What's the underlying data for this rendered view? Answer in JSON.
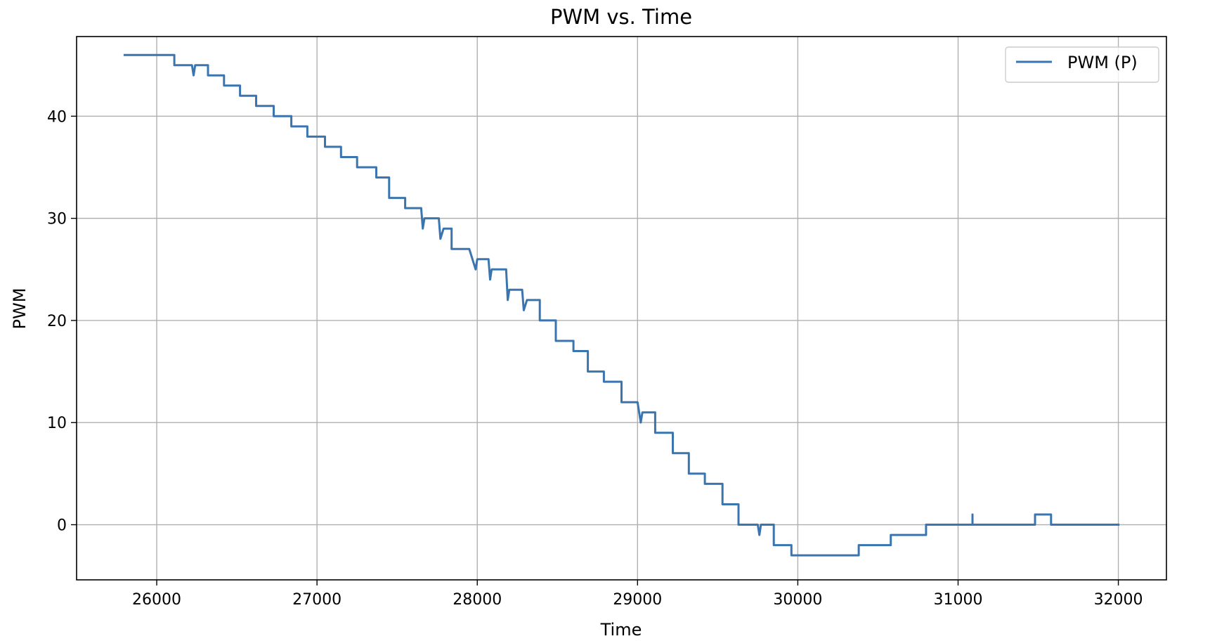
{
  "chart_data": {
    "type": "line",
    "title": "PWM vs. Time",
    "xlabel": "Time",
    "ylabel": "PWM",
    "xlim": [
      25500,
      32300
    ],
    "ylim": [
      -5.4,
      47.8
    ],
    "xticks": [
      26000,
      27000,
      28000,
      29000,
      30000,
      31000,
      32000
    ],
    "yticks": [
      0,
      10,
      20,
      30,
      40
    ],
    "grid": true,
    "legend_position": "top-right",
    "series": [
      {
        "name": "PWM (P)",
        "color": "#3b75af",
        "points": [
          [
            25800,
            46
          ],
          [
            26110,
            46
          ],
          [
            26110,
            45
          ],
          [
            26220,
            45
          ],
          [
            26230,
            44
          ],
          [
            26240,
            45
          ],
          [
            26320,
            45
          ],
          [
            26320,
            44
          ],
          [
            26420,
            44
          ],
          [
            26420,
            43
          ],
          [
            26520,
            43
          ],
          [
            26520,
            42
          ],
          [
            26620,
            42
          ],
          [
            26620,
            41
          ],
          [
            26730,
            41
          ],
          [
            26730,
            40
          ],
          [
            26840,
            40
          ],
          [
            26840,
            39
          ],
          [
            26940,
            39
          ],
          [
            26940,
            38
          ],
          [
            27050,
            38
          ],
          [
            27050,
            37
          ],
          [
            27150,
            37
          ],
          [
            27150,
            36
          ],
          [
            27250,
            36
          ],
          [
            27250,
            35
          ],
          [
            27370,
            35
          ],
          [
            27370,
            34
          ],
          [
            27450,
            34
          ],
          [
            27450,
            32
          ],
          [
            27550,
            32
          ],
          [
            27550,
            31
          ],
          [
            27650,
            31
          ],
          [
            27660,
            29
          ],
          [
            27670,
            30
          ],
          [
            27760,
            30
          ],
          [
            27770,
            28
          ],
          [
            27790,
            29
          ],
          [
            27840,
            29
          ],
          [
            27840,
            27
          ],
          [
            27950,
            27
          ],
          [
            27990,
            25
          ],
          [
            28000,
            26
          ],
          [
            28070,
            26
          ],
          [
            28080,
            24
          ],
          [
            28090,
            25
          ],
          [
            28180,
            25
          ],
          [
            28190,
            22
          ],
          [
            28200,
            23
          ],
          [
            28280,
            23
          ],
          [
            28290,
            21
          ],
          [
            28310,
            22
          ],
          [
            28390,
            22
          ],
          [
            28390,
            20
          ],
          [
            28490,
            20
          ],
          [
            28490,
            18
          ],
          [
            28600,
            18
          ],
          [
            28600,
            17
          ],
          [
            28690,
            17
          ],
          [
            28690,
            15
          ],
          [
            28790,
            15
          ],
          [
            28790,
            14
          ],
          [
            28900,
            14
          ],
          [
            28900,
            12
          ],
          [
            29000,
            12
          ],
          [
            29020,
            10
          ],
          [
            29030,
            11
          ],
          [
            29110,
            11
          ],
          [
            29110,
            9
          ],
          [
            29220,
            9
          ],
          [
            29220,
            7
          ],
          [
            29320,
            7
          ],
          [
            29320,
            5
          ],
          [
            29420,
            5
          ],
          [
            29420,
            4
          ],
          [
            29530,
            4
          ],
          [
            29530,
            2
          ],
          [
            29630,
            2
          ],
          [
            29630,
            0
          ],
          [
            29750,
            0
          ],
          [
            29760,
            -1
          ],
          [
            29770,
            0
          ],
          [
            29850,
            0
          ],
          [
            29850,
            -2
          ],
          [
            29960,
            -2
          ],
          [
            29960,
            -3
          ],
          [
            30380,
            -3
          ],
          [
            30380,
            -2
          ],
          [
            30580,
            -2
          ],
          [
            30580,
            -1
          ],
          [
            30800,
            -1
          ],
          [
            30800,
            0
          ],
          [
            31090,
            0
          ],
          [
            31090,
            1
          ],
          [
            31090,
            0
          ],
          [
            31480,
            0
          ],
          [
            31480,
            1
          ],
          [
            31580,
            1
          ],
          [
            31580,
            0
          ],
          [
            32000,
            0
          ]
        ]
      }
    ]
  }
}
